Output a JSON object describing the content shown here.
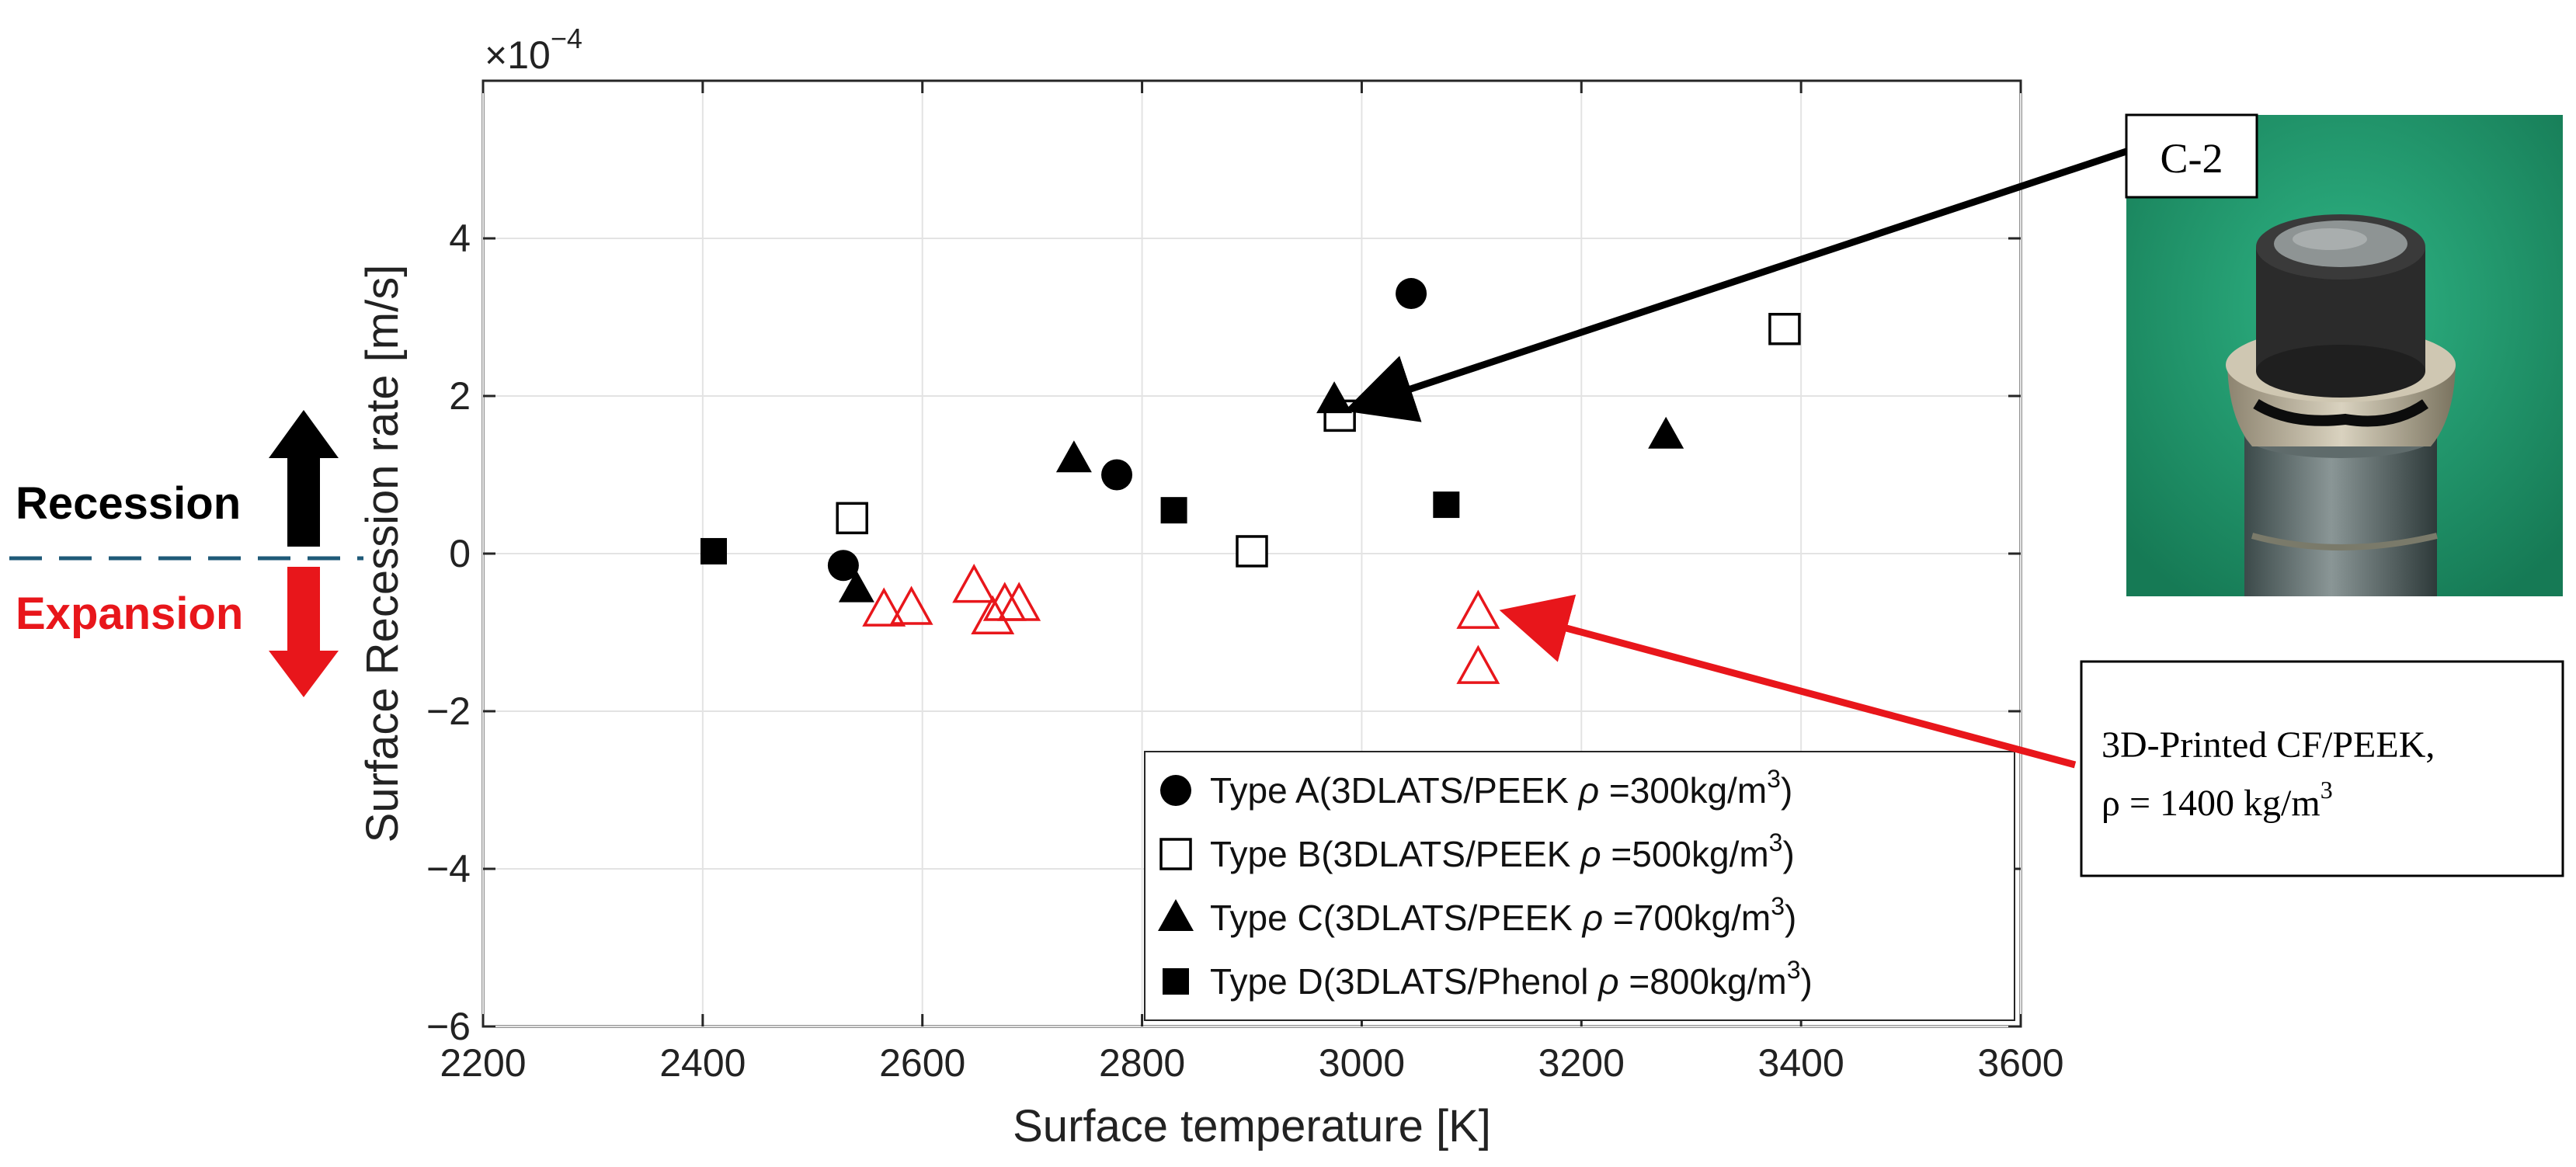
{
  "chart_data": {
    "type": "scatter",
    "title": "",
    "xlabel": "Surface temperature [K]",
    "ylabel": "Surface Recession rate [m/s]",
    "y_multiplier_label": "×10",
    "y_multiplier_exp": "−4",
    "xlim": [
      2200,
      3600
    ],
    "ylim": [
      -6,
      6
    ],
    "xticks": [
      2200,
      2400,
      2600,
      2800,
      3000,
      3200,
      3400,
      3600
    ],
    "yticks": [
      -6,
      -4,
      -2,
      0,
      2,
      4
    ],
    "ytick_labels": [
      "−6",
      "−4",
      "−2",
      "0",
      "2",
      "4"
    ],
    "grid": true,
    "legend_position": "bottom-right",
    "series": [
      {
        "name": "Type A",
        "label_prefix": "Type A(3DLATS/PEEK ",
        "rho_symbol": "ρ",
        "label_value": " =300kg/m",
        "label_exp": "3",
        "label_suffix": ")",
        "marker": "circle-filled",
        "color": "#000000",
        "x": [
          2528,
          2777,
          3045
        ],
        "y": [
          -0.15,
          1.0,
          3.3
        ]
      },
      {
        "name": "Type B",
        "label_prefix": "Type B(3DLATS/PEEK ",
        "rho_symbol": "ρ",
        "label_value": " =500kg/m",
        "label_exp": "3",
        "label_suffix": ")",
        "marker": "square-open",
        "color": "#000000",
        "x": [
          2536,
          2900,
          2980,
          3385
        ],
        "y": [
          0.45,
          0.03,
          1.75,
          2.85
        ]
      },
      {
        "name": "Type C",
        "label_prefix": "Type C(3DLATS/PEEK ",
        "rho_symbol": "ρ",
        "label_value": " =700kg/m",
        "label_exp": "3",
        "label_suffix": ")",
        "marker": "triangle-filled",
        "color": "#000000",
        "x": [
          2540,
          2738,
          2975,
          3277
        ],
        "y": [
          -0.45,
          1.2,
          1.95,
          1.5
        ]
      },
      {
        "name": "Type D",
        "label_prefix": "Type D(3DLATS/Phenol ",
        "rho_symbol": "ρ",
        "label_value": " =800kg/m",
        "label_exp": "3",
        "label_suffix": ")",
        "marker": "square-filled",
        "color": "#000000",
        "x": [
          2410,
          2829,
          3077
        ],
        "y": [
          0.03,
          0.55,
          0.62
        ]
      },
      {
        "name": "3D-Printed CF/PEEK",
        "marker": "triangle-open",
        "color": "#e8161b",
        "in_legend": false,
        "x": [
          2565,
          2590,
          2647,
          2664,
          2675,
          2688,
          3106,
          3106
        ],
        "y": [
          -0.72,
          -0.7,
          -0.42,
          -0.82,
          -0.65,
          -0.65,
          -0.75,
          -1.45
        ]
      }
    ],
    "annotations": {
      "recession_label": "Recession",
      "expansion_label": "Expansion",
      "c2_label": "C-2",
      "cf_peek_line1": "3D-Printed CF/PEEK,",
      "cf_peek_line2_prefix": "ρ = 1400 kg/m",
      "cf_peek_line2_exp": "3",
      "c2_target": {
        "x": 2980,
        "y": 2.0
      },
      "cf_peek_target": {
        "x": 3140,
        "y": -0.75
      }
    }
  },
  "colors": {
    "recession": "#000000",
    "expansion": "#e8161b",
    "dashed_line": "#1f5a78",
    "photo_background": "#1f9a6c"
  }
}
